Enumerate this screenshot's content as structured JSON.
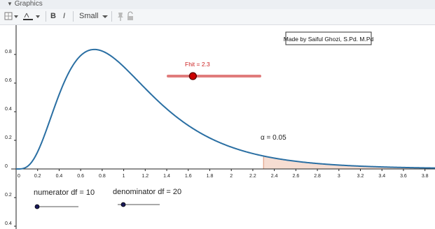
{
  "panel": {
    "title": "Graphics"
  },
  "toolbar": {
    "bold_label": "B",
    "italic_label": "I",
    "size_label": "Small",
    "icons": [
      "grid-dropdown-icon",
      "line-color-icon",
      "pin-icon",
      "lock-icon"
    ]
  },
  "graph": {
    "credit": "Made by Saiful Ghozi, S.Pd. M.Pd",
    "alpha_label": "α  =  0.05",
    "fhit_label": "Fhit = 2.3",
    "fhit_value": 2.3,
    "fhit_slider_fraction": 0.27,
    "numerator_label": "numerator df = 10",
    "denominator_label": "denominator df = 20",
    "numerator_df": 10,
    "denominator_df": 20,
    "x_ticks": [
      "0",
      "0.2",
      "0.4",
      "0.6",
      "0.8",
      "1",
      "1.2",
      "1.4",
      "1.6",
      "1.8",
      "2",
      "2.2",
      "2.4",
      "2.6",
      "2.8",
      "3",
      "3.2",
      "3.4",
      "3.6",
      "3.8"
    ],
    "y_ticks_pos": [
      "0.8",
      "0.6",
      "0.4",
      "0.2",
      "0"
    ],
    "y_ticks_neg": [
      "0.2",
      "0.4"
    ],
    "colors": {
      "curve": "#2a6fa3",
      "shade": "#f6ddd2",
      "shade_edge": "#e2a58c",
      "slider": "#e07c7c",
      "point": "#cc0000"
    }
  }
}
